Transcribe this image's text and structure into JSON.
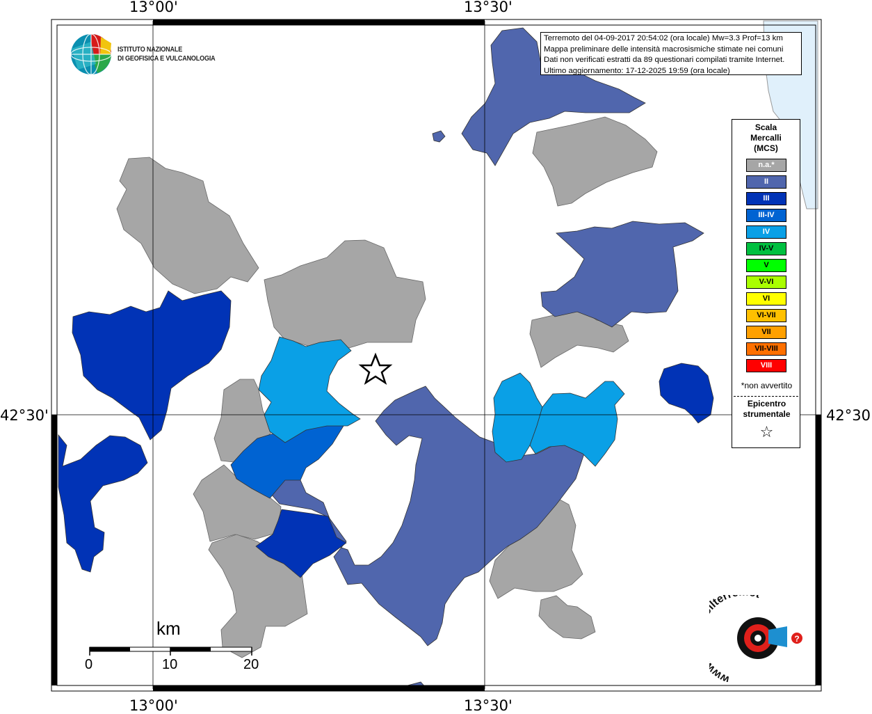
{
  "map": {
    "grid_labels": {
      "lon_west": "13°00'",
      "lon_east": "13°30'",
      "lat": "42°30'"
    },
    "info_lines": [
      "Terremoto del 04-09-2017 20:54:02 (ora locale) Mw=3.3 Prof=13 km",
      "Mappa preliminare delle intensità macrosismiche stimate nei comuni",
      "Dati non verificati estratti da 89 questionari compilati tramite Internet.",
      "Ultimo aggiornamento: 17-12-2025 19:59 (ora locale)"
    ],
    "institute": {
      "line1": "ISTITUTO NAZIONALE",
      "line2": "DI GEOFISICA E VULCANOLOGIA"
    },
    "scale_bar": {
      "unit": "km",
      "ticks": [
        "0",
        "10",
        "20"
      ]
    },
    "brand_logo_text": "www.haisentitoilterremoto.it"
  },
  "legend": {
    "title_lines": [
      "Scala",
      "Mercalli",
      "(MCS)"
    ],
    "items": [
      {
        "label": "n.a.*",
        "color": "#a6a6a6"
      },
      {
        "label": "II",
        "color": "#5066ad"
      },
      {
        "label": "III",
        "color": "#0133b6"
      },
      {
        "label": "III-IV",
        "color": "#0063d2"
      },
      {
        "label": "IV",
        "color": "#0aa0e6"
      },
      {
        "label": "IV-V",
        "color": "#00c040"
      },
      {
        "label": "V",
        "color": "#00ff00"
      },
      {
        "label": "V-VI",
        "color": "#aaff00"
      },
      {
        "label": "VI",
        "color": "#ffff00"
      },
      {
        "label": "VI-VII",
        "color": "#ffc000"
      },
      {
        "label": "VII",
        "color": "#ffa000"
      },
      {
        "label": "VII-VIII",
        "color": "#ff7000"
      },
      {
        "label": "VIII",
        "color": "#ff0000"
      }
    ],
    "not_felt_note": "*non avvertito",
    "epicenter_lines": [
      "Epicentro",
      "strumentale"
    ],
    "epicenter_symbol": "☆"
  },
  "colors": {
    "na": "#a6a6a6",
    "II": "#5066ad",
    "III": "#0133b6",
    "III_IV": "#0063d2",
    "IV": "#0aa0e6",
    "sea": "#e0f0fb"
  }
}
